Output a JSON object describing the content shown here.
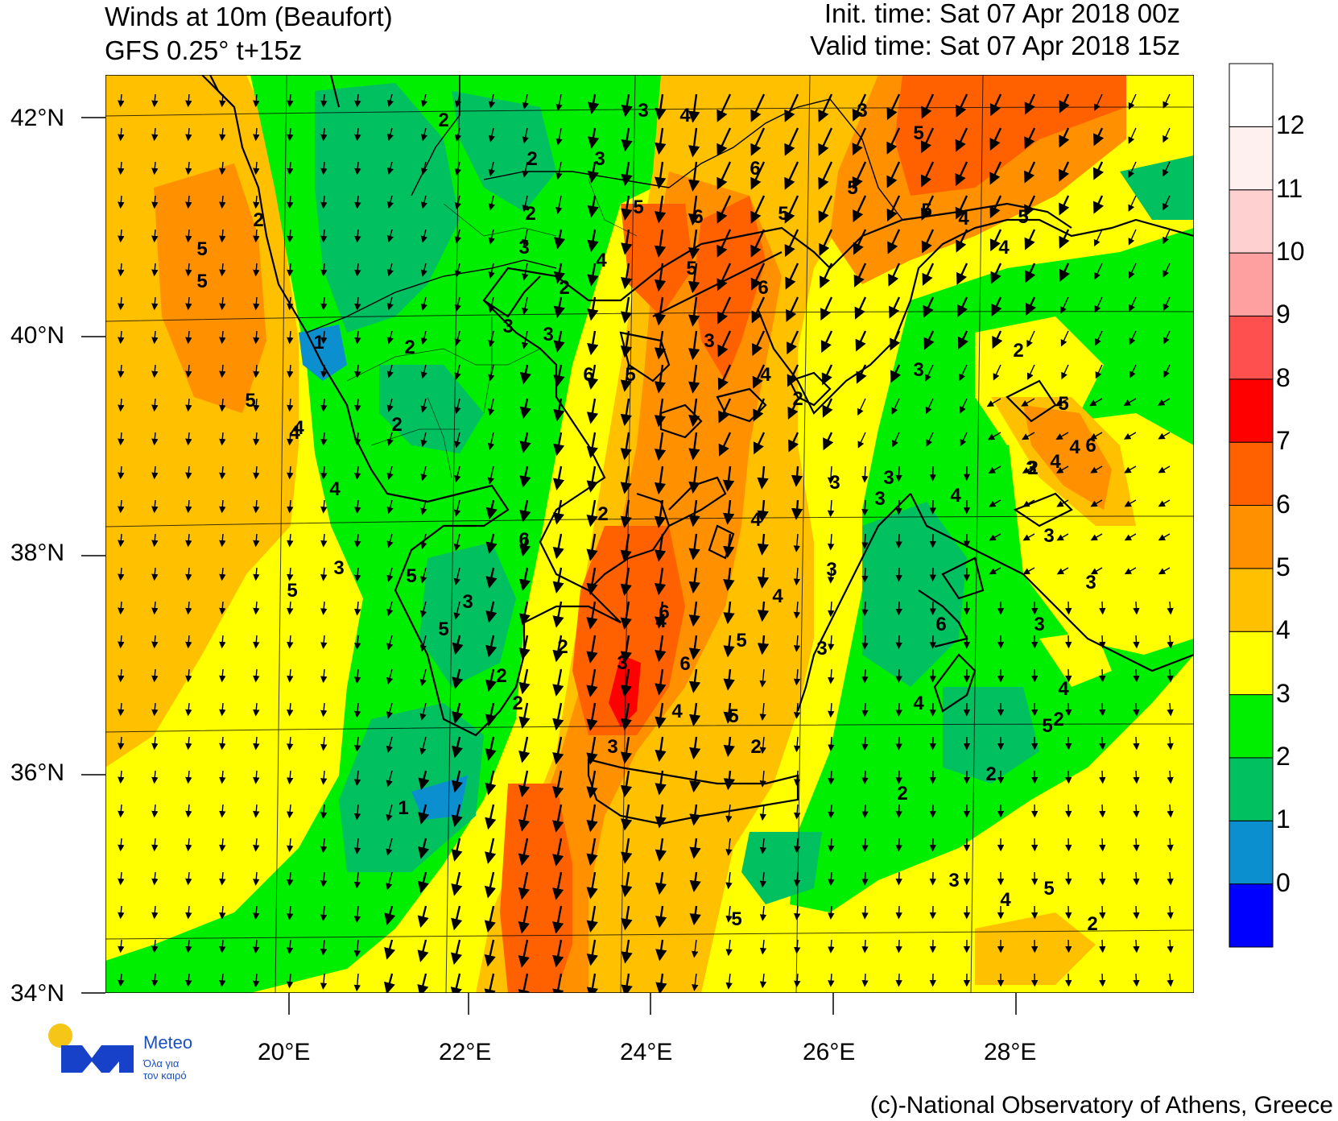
{
  "header": {
    "title_line1": "Winds at 10m (Beaufort)",
    "title_line2": "GFS 0.25° t+15z",
    "init_time": "Init. time: Sat 07 Apr 2018 00z",
    "valid_time": "Valid time: Sat 07 Apr 2018 15z"
  },
  "axes": {
    "lat_labels": [
      "42°N",
      "40°N",
      "38°N",
      "36°N",
      "34°N"
    ],
    "lon_labels": [
      "20°E",
      "22°E",
      "24°E",
      "26°E",
      "28°E"
    ]
  },
  "colorbar": {
    "levels": [
      "0",
      "1",
      "2",
      "3",
      "4",
      "5",
      "6",
      "7",
      "8",
      "9",
      "10",
      "11",
      "12"
    ],
    "colors": [
      "#0000ff",
      "#0c8fce",
      "#00c060",
      "#00ee00",
      "#ffff00",
      "#ffc000",
      "#ff9000",
      "#ff6000",
      "#ff0000",
      "#ff5050",
      "#ffa0a0",
      "#ffd0d0",
      "#fff0f0",
      "#ffffff"
    ]
  },
  "field": {
    "colors": {
      "b1": "#0c8fce",
      "b2": "#00c060",
      "b3": "#00ee00",
      "b4": "#ffff00",
      "b5": "#ffc000",
      "b6": "#ff9000",
      "b7": "#ff6000",
      "b8": "#ff0000"
    }
  },
  "contour_labels": [
    "2",
    "3",
    "4",
    "2",
    "3",
    "3",
    "5",
    "6",
    "5",
    "5",
    "5",
    "4",
    "3",
    "2",
    "2",
    "5",
    "4",
    "5",
    "6",
    "5",
    "6",
    "4",
    "2",
    "5",
    "5",
    "1",
    "3",
    "2",
    "3",
    "3",
    "6",
    "5",
    "4",
    "2",
    "2",
    "3",
    "5",
    "4",
    "4",
    "3",
    "4",
    "2",
    "4",
    "5",
    "4",
    "3",
    "5",
    "5",
    "3",
    "4",
    "2",
    "6",
    "5",
    "2",
    "2",
    "3",
    "6",
    "5",
    "3",
    "4",
    "4",
    "4",
    "2",
    "5",
    "3",
    "2",
    "6",
    "4",
    "3",
    "3",
    "3",
    "2",
    "5",
    "5",
    "3",
    "2",
    "1",
    "2",
    "5",
    "2",
    "4",
    "3",
    "4",
    "3",
    "6",
    "3",
    "6",
    "3",
    "2",
    "4"
  ],
  "credit": "(c)-National Observatory of Athens, Greece",
  "logo": {
    "name": "Meteo",
    "tagline_1": "Όλα για",
    "tagline_2": "τον καιρό"
  }
}
